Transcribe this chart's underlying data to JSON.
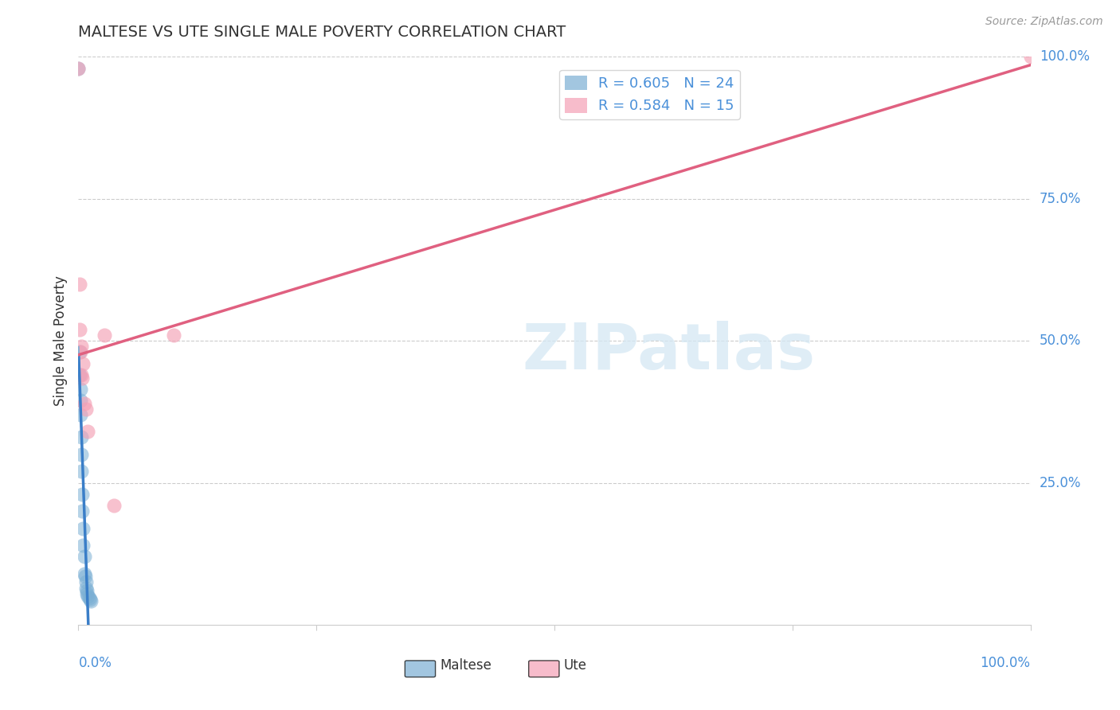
{
  "title": "MALTESE VS UTE SINGLE MALE POVERTY CORRELATION CHART",
  "source": "Source: ZipAtlas.com",
  "ylabel": "Single Male Poverty",
  "ytick_labels": [
    "100.0%",
    "75.0%",
    "50.0%",
    "25.0%"
  ],
  "ytick_positions": [
    1.0,
    0.75,
    0.5,
    0.25
  ],
  "xtick_positions": [
    0.0,
    0.25,
    0.5,
    0.75,
    1.0
  ],
  "maltese_x": [
    0.001,
    0.001,
    0.002,
    0.002,
    0.002,
    0.003,
    0.003,
    0.003,
    0.004,
    0.004,
    0.005,
    0.005,
    0.006,
    0.006,
    0.007,
    0.008,
    0.008,
    0.009,
    0.009,
    0.01,
    0.011,
    0.012,
    0.013,
    0.0
  ],
  "maltese_y": [
    0.48,
    0.44,
    0.415,
    0.395,
    0.37,
    0.33,
    0.3,
    0.27,
    0.23,
    0.2,
    0.17,
    0.14,
    0.12,
    0.09,
    0.085,
    0.075,
    0.065,
    0.06,
    0.055,
    0.05,
    0.048,
    0.045,
    0.042,
    0.98
  ],
  "ute_x": [
    0.001,
    0.001,
    0.002,
    0.003,
    0.003,
    0.004,
    0.005,
    0.006,
    0.008,
    0.01,
    0.027,
    0.037,
    0.1,
    0.0,
    1.0
  ],
  "ute_y": [
    0.6,
    0.52,
    0.48,
    0.49,
    0.44,
    0.435,
    0.46,
    0.39,
    0.38,
    0.34,
    0.51,
    0.21,
    0.51,
    0.98,
    1.0
  ],
  "maltese_color": "#7bafd4",
  "ute_color": "#f4a0b5",
  "maltese_line_color": "#3a7ec8",
  "maltese_line_dashed_color": "#7bafd4",
  "ute_line_color": "#e06080",
  "background_color": "#ffffff",
  "grid_color": "#cccccc",
  "axis_label_color": "#4a90d9",
  "title_color": "#333333",
  "watermark_text": "ZIPatlas",
  "watermark_color": "#d5e8f4",
  "R_maltese": 0.605,
  "R_ute": 0.584,
  "N_maltese": 24,
  "N_ute": 15
}
